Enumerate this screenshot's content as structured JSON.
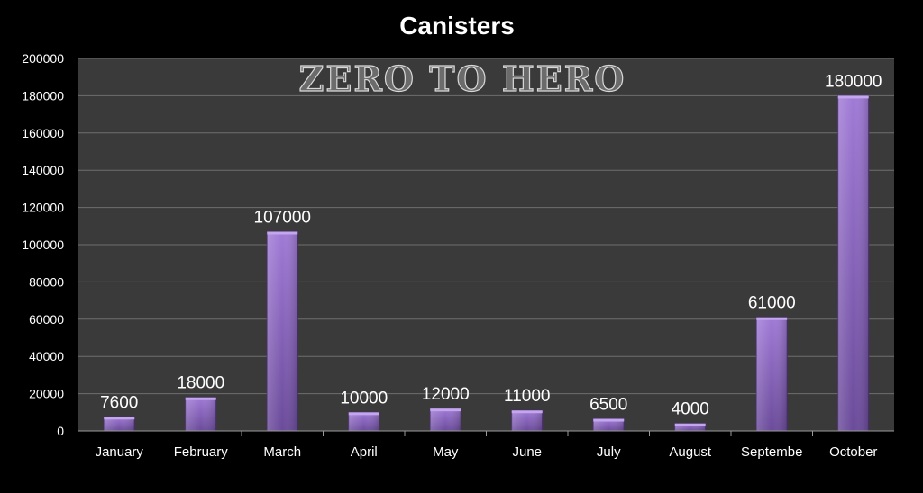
{
  "chart_data": {
    "type": "bar",
    "title": "Canisters",
    "watermark": "ZERO TO HERO",
    "categories": [
      "January",
      "February",
      "March",
      "April",
      "May",
      "June",
      "July",
      "August",
      "Septembe",
      "October"
    ],
    "values": [
      7600,
      18000,
      107000,
      10000,
      12000,
      11000,
      6500,
      4000,
      61000,
      180000
    ],
    "data_labels": [
      "7600",
      "18000",
      "107000",
      "10000",
      "12000",
      "11000",
      "6500",
      "4000",
      "61000",
      "180000"
    ],
    "yticks": [
      "0",
      "20000",
      "40000",
      "60000",
      "80000",
      "100000",
      "120000",
      "140000",
      "160000",
      "180000",
      "200000"
    ],
    "ylim": [
      0,
      200000
    ],
    "ytick_step": 20000,
    "grid": true,
    "legend": "none",
    "colors": {
      "background": "#000000",
      "plot_area": "#3a3a3a",
      "grid": "#6e6e6e",
      "bar_light": "#9a72cf",
      "bar_dark": "#6b4a9c",
      "text": "#ffffff"
    }
  }
}
